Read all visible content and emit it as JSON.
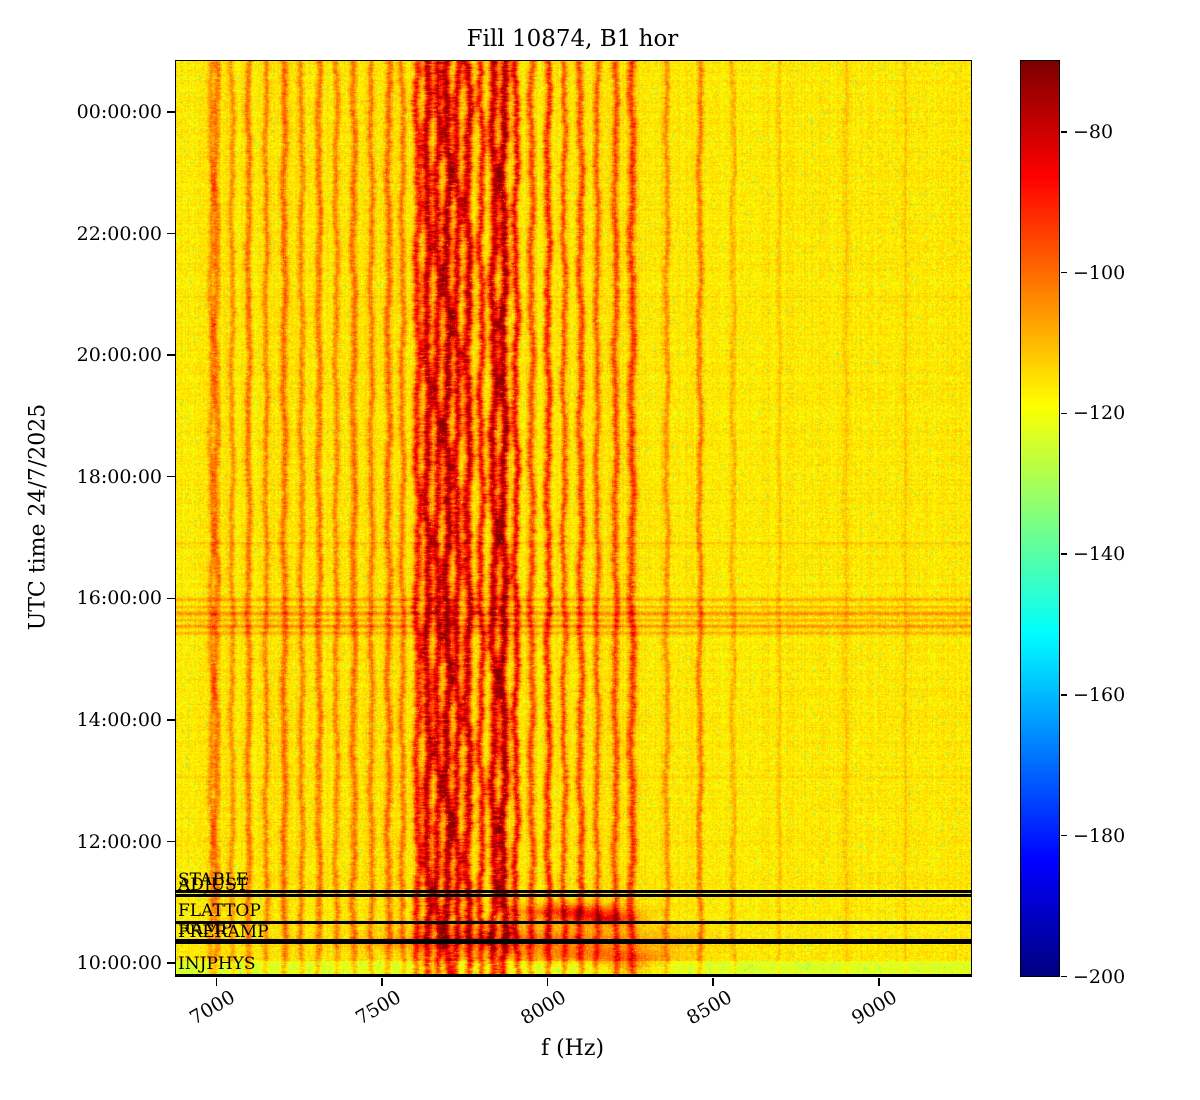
{
  "chart_data": {
    "type": "heatmap",
    "title": "Fill 10874, B1 hor",
    "xlabel": "f (Hz)",
    "ylabel": "UTC time 24/7/2025",
    "x_range_hz": [
      6880,
      9280
    ],
    "x_ticks_hz": [
      7000,
      7500,
      8000,
      8500,
      9000
    ],
    "time_axis": {
      "date": "24/7/2025",
      "hour_bottom": 9.78,
      "hour_top": 24.83,
      "ticks": [
        {
          "hour": 10,
          "label": "10:00:00"
        },
        {
          "hour": 12,
          "label": "12:00:00"
        },
        {
          "hour": 14,
          "label": "14:00:00"
        },
        {
          "hour": 16,
          "label": "16:00:00"
        },
        {
          "hour": 18,
          "label": "18:00:00"
        },
        {
          "hour": 20,
          "label": "20:00:00"
        },
        {
          "hour": 22,
          "label": "22:00:00"
        },
        {
          "hour": 24,
          "label": "00:00:00"
        }
      ]
    },
    "colorbar": {
      "min_db": -200,
      "max_db": -70,
      "ticks_db": [
        -80,
        -100,
        -120,
        -140,
        -160,
        -180,
        -200
      ],
      "colormap": "jet"
    },
    "background_db": -116,
    "beam_mode_events": [
      {
        "label": "INJPHYS",
        "hour": 9.79
      },
      {
        "label": "PRERAMP",
        "hour": 10.33
      },
      {
        "label": "RAMP",
        "hour": 10.37
      },
      {
        "label": "FLATTOP",
        "hour": 10.66
      },
      {
        "label": "ADJUST",
        "hour": 11.1
      },
      {
        "label": "STABLE",
        "hour": 11.17
      }
    ],
    "spectral_lines": [
      [
        6985,
        -105,
        6,
        5
      ],
      [
        7000,
        -101,
        7,
        5
      ],
      [
        7048,
        -104,
        6,
        5
      ],
      [
        7098,
        -102,
        7,
        5
      ],
      [
        7150,
        -103,
        6,
        5
      ],
      [
        7205,
        -100,
        7,
        5
      ],
      [
        7258,
        -103,
        6,
        5
      ],
      [
        7310,
        -101,
        7,
        5
      ],
      [
        7362,
        -103,
        6,
        5
      ],
      [
        7415,
        -100,
        7,
        5
      ],
      [
        7468,
        -102,
        6,
        5
      ],
      [
        7520,
        -99,
        7,
        5
      ],
      [
        7562,
        -101,
        6,
        5
      ],
      [
        7608,
        -88,
        8,
        7
      ],
      [
        7638,
        -79,
        9,
        7
      ],
      [
        7668,
        -82,
        8,
        7
      ],
      [
        7698,
        -76,
        9,
        8
      ],
      [
        7727,
        -83,
        8,
        7
      ],
      [
        7760,
        -80,
        9,
        8
      ],
      [
        7800,
        -88,
        7,
        7
      ],
      [
        7838,
        -79,
        9,
        8
      ],
      [
        7868,
        -76,
        9,
        8
      ],
      [
        7905,
        -87,
        7,
        7
      ],
      [
        7952,
        -96,
        7,
        6
      ],
      [
        8002,
        -92,
        7,
        6
      ],
      [
        8050,
        -97,
        6,
        6
      ],
      [
        8100,
        -95,
        7,
        6
      ],
      [
        8150,
        -99,
        6,
        5
      ],
      [
        8205,
        -96,
        7,
        5
      ],
      [
        8255,
        -93,
        8,
        6
      ],
      [
        8360,
        -104,
        6,
        5
      ],
      [
        8460,
        -102,
        6,
        5
      ],
      [
        8560,
        -108,
        5,
        5
      ],
      [
        8700,
        -111,
        5,
        4
      ],
      [
        8900,
        -111,
        5,
        4
      ],
      [
        9080,
        -112,
        5,
        4
      ]
    ],
    "horizontal_bands": [
      [
        15.42,
        0.018,
        9
      ],
      [
        15.53,
        0.022,
        12
      ],
      [
        15.63,
        0.015,
        8
      ],
      [
        15.74,
        0.026,
        12
      ],
      [
        15.85,
        0.015,
        7
      ],
      [
        15.97,
        0.02,
        9
      ],
      [
        16.9,
        0.012,
        4
      ],
      [
        20.95,
        0.012,
        4
      ],
      [
        13.05,
        0.01,
        3
      ],
      [
        11.3,
        0.01,
        3
      ]
    ],
    "blobs": [
      [
        8080,
        10.82,
        110,
        0.1,
        26
      ],
      [
        8185,
        10.72,
        55,
        0.06,
        20
      ],
      [
        7990,
        10.44,
        280,
        0.13,
        11
      ],
      [
        8120,
        10.12,
        170,
        0.1,
        12
      ],
      [
        8255,
        9.95,
        60,
        0.14,
        13
      ],
      [
        7850,
        10.3,
        320,
        0.09,
        8
      ]
    ],
    "low_band": {
      "below_hour": 10.03,
      "drop_db": 9
    }
  }
}
